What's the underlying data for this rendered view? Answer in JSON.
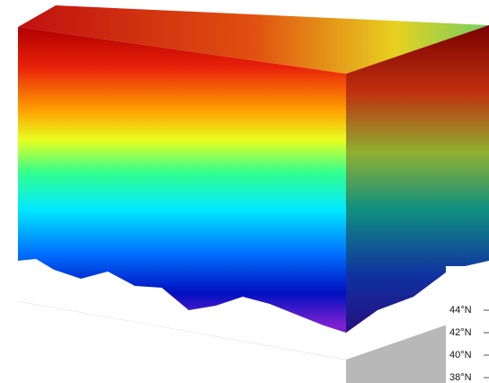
{
  "latitude_labels": [
    "44°N",
    "42°N",
    "40°N",
    "38°N"
  ]
}
